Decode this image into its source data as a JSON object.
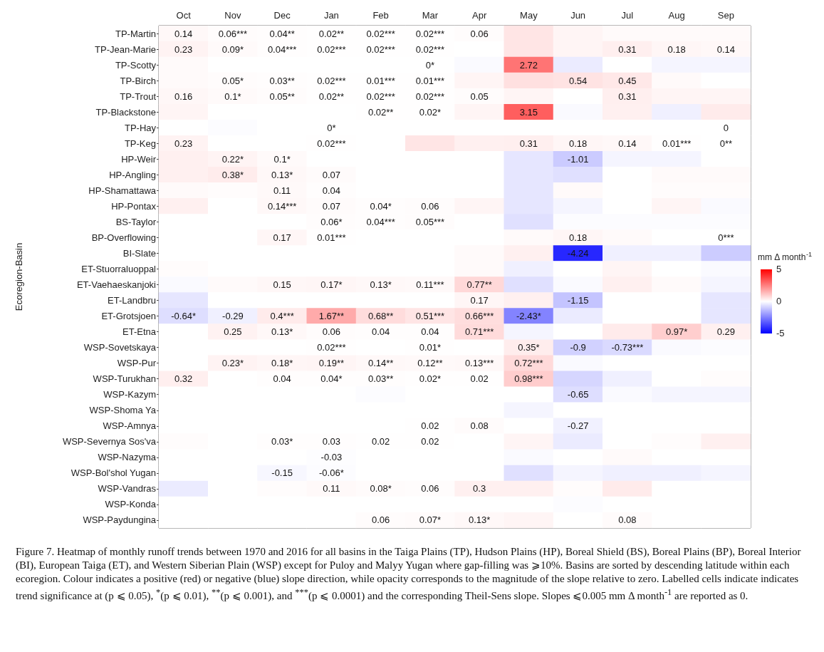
{
  "chart_data": {
    "type": "heatmap",
    "ylabel": "Ecoregion-Basin",
    "clabel": "mm Δ month$^{-1}$",
    "clim": [
      -5,
      5
    ],
    "cticks": [
      -5,
      0,
      5
    ],
    "categories": [
      "Oct",
      "Nov",
      "Dec",
      "Jan",
      "Feb",
      "Mar",
      "Apr",
      "May",
      "Jun",
      "Jul",
      "Aug",
      "Sep"
    ],
    "y_categories": [
      "TP-Martin",
      "TP-Jean-Marie",
      "TP-Scotty",
      "TP-Birch",
      "TP-Trout",
      "TP-Blackstone",
      "TP-Hay",
      "TP-Keg",
      "HP-Weir",
      "HP-Angling",
      "HP-Shamattawa",
      "HP-Pontax",
      "BS-Taylor",
      "BP-Overflowing",
      "BI-Slate",
      "ET-Stuorraluoppal",
      "ET-Vaehaeskanjoki",
      "ET-Landbru",
      "ET-Grotsjoen",
      "ET-Etna",
      "WSP-Sovetskaya",
      "WSP-Pur",
      "WSP-Turukhan",
      "WSP-Kazym",
      "WSP-Shoma Ya",
      "WSP-Amnya",
      "WSP-Severnya Sos'va",
      "WSP-Nazyma",
      "WSP-Bol'shol Yugan",
      "WSP-Vandras",
      "WSP-Konda",
      "WSP-Paydungina"
    ],
    "cells": [
      [
        0.14,
        0.06,
        0.04,
        0.02,
        0.02,
        0.02,
        0.06,
        0.5,
        0.2,
        0.1,
        0.1,
        0.1
      ],
      [
        0.23,
        0.09,
        0.04,
        0.02,
        0.02,
        0.02,
        0,
        0.5,
        0.2,
        0.31,
        0.18,
        0.14
      ],
      [
        0.1,
        0,
        0,
        0,
        0,
        0,
        -0.1,
        2.72,
        -0.4,
        0,
        -0.2,
        -0.2
      ],
      [
        0.1,
        0.05,
        0.03,
        0.02,
        0.01,
        0.01,
        0.2,
        0.6,
        0.54,
        0.45,
        0.1,
        0
      ],
      [
        0.16,
        0.1,
        0.05,
        0.02,
        0.02,
        0.02,
        0.05,
        0.2,
        0,
        0.31,
        0.2,
        0.2
      ],
      [
        0.2,
        0,
        0,
        0,
        0.02,
        0.02,
        0.2,
        3.15,
        -0.1,
        0.3,
        -0.3,
        0.4
      ],
      [
        0,
        -0.05,
        0,
        0,
        0,
        0,
        0,
        0,
        0,
        0,
        0,
        0
      ],
      [
        0.23,
        0,
        0,
        0.02,
        0,
        0.5,
        0.3,
        0.31,
        0.18,
        0.14,
        0.01,
        0
      ],
      [
        0.3,
        0.22,
        0.1,
        0,
        0,
        0,
        0,
        -0.5,
        -1.01,
        -0.2,
        -0.2,
        0
      ],
      [
        0.3,
        0.38,
        0.13,
        0.07,
        0,
        0,
        0,
        -0.5,
        -0.6,
        0,
        0.1,
        0.1
      ],
      [
        0.1,
        0.05,
        0.11,
        0.04,
        0,
        0,
        0,
        -0.5,
        0.1,
        0,
        0.05,
        0.05
      ],
      [
        0.3,
        0,
        0.14,
        0.07,
        0.04,
        0.06,
        0.2,
        -0.5,
        -0.2,
        0,
        0.2,
        -0.1
      ],
      [
        0,
        0,
        0,
        0.06,
        0.04,
        0.05,
        0,
        -0.6,
        -0.05,
        -0.05,
        -0.05,
        -0.05
      ],
      [
        0,
        0,
        0.17,
        0.01,
        0,
        0,
        0,
        0.1,
        0.18,
        0.1,
        0,
        0
      ],
      [
        0,
        0,
        0,
        0,
        0,
        0,
        0.1,
        0.3,
        -4.24,
        -0.3,
        -0.3,
        -1
      ],
      [
        0.05,
        0,
        0,
        0,
        0,
        0,
        0.1,
        -0.3,
        0,
        0.2,
        0,
        -0.1
      ],
      [
        -0.1,
        0.1,
        0.15,
        0.17,
        0.13,
        0.11,
        0.77,
        -0.6,
        -0.1,
        0.3,
        0.1,
        -0.2
      ],
      [
        -0.5,
        0,
        0,
        0,
        0,
        0,
        0.17,
        0.3,
        -1.15,
        0,
        0,
        -0.5
      ],
      [
        -0.64,
        -0.29,
        0.4,
        1.67,
        0.68,
        0.51,
        0.66,
        -2.43,
        -0.4,
        0,
        0,
        -0.5
      ],
      [
        0,
        0.25,
        0.13,
        0.06,
        0.04,
        0.04,
        0.71,
        -0.2,
        0,
        0.4,
        0.97,
        0.29
      ],
      [
        0,
        0,
        0,
        0.02,
        0,
        0.01,
        0,
        0.35,
        -0.9,
        -0.73,
        -0.1,
        -0.05
      ],
      [
        0,
        0.23,
        0.18,
        0.19,
        0.14,
        0.12,
        0.13,
        0.72,
        -0.1,
        0,
        0,
        0
      ],
      [
        0.32,
        0,
        0.04,
        0.04,
        0.03,
        0.02,
        0.02,
        0.98,
        -0.8,
        -0.3,
        0,
        0.05
      ],
      [
        0,
        0,
        0,
        0,
        -0.05,
        0,
        0,
        0,
        -0.65,
        -0.1,
        -0.2,
        -0.2
      ],
      [
        0,
        0,
        0,
        0,
        0,
        0,
        0,
        -0.2,
        0,
        0,
        0,
        0
      ],
      [
        0,
        0,
        0,
        0,
        0,
        0.02,
        0.08,
        0,
        -0.27,
        0,
        0,
        0
      ],
      [
        0.05,
        0,
        0.03,
        0.03,
        0.02,
        0.02,
        0,
        0.2,
        -0.4,
        0,
        0.05,
        0.3
      ],
      [
        0,
        0,
        0,
        -0.03,
        0,
        0,
        0,
        -0.1,
        0,
        0.1,
        0,
        0
      ],
      [
        0,
        0,
        -0.15,
        -0.06,
        0,
        0,
        0,
        -0.6,
        -0.2,
        -0.3,
        -0.3,
        -0.2
      ],
      [
        -0.4,
        0,
        0.05,
        0.11,
        0.08,
        0.06,
        0.3,
        0.3,
        0.05,
        0.4,
        0,
        0
      ],
      [
        0,
        0,
        0,
        0,
        0,
        0,
        0,
        0,
        -0.05,
        0,
        0,
        0
      ],
      [
        0,
        0,
        0,
        0,
        0.06,
        0.07,
        0.13,
        0.2,
        0,
        0.08,
        0,
        0
      ]
    ],
    "cell_labels": [
      [
        "0.14",
        "0.06***",
        "0.04**",
        "0.02**",
        "0.02***",
        "0.02***",
        "0.06",
        null,
        null,
        null,
        null,
        null
      ],
      [
        "0.23",
        "0.09*",
        "0.04***",
        "0.02***",
        "0.02***",
        "0.02***",
        null,
        null,
        null,
        "0.31",
        "0.18",
        "0.14"
      ],
      [
        null,
        null,
        null,
        null,
        null,
        "0*",
        null,
        "2.72",
        null,
        null,
        null,
        null
      ],
      [
        null,
        "0.05*",
        "0.03**",
        "0.02***",
        "0.01***",
        "0.01***",
        null,
        null,
        "0.54",
        "0.45",
        null,
        null
      ],
      [
        "0.16",
        "0.1*",
        "0.05**",
        "0.02**",
        "0.02***",
        "0.02***",
        "0.05",
        null,
        null,
        "0.31",
        null,
        null
      ],
      [
        null,
        null,
        null,
        null,
        "0.02**",
        "0.02*",
        null,
        "3.15",
        null,
        null,
        null,
        null
      ],
      [
        null,
        null,
        null,
        "0*",
        null,
        null,
        null,
        null,
        null,
        null,
        null,
        "0"
      ],
      [
        "0.23",
        null,
        null,
        "0.02***",
        null,
        null,
        null,
        "0.31",
        "0.18",
        "0.14",
        "0.01***",
        "0**"
      ],
      [
        null,
        "0.22*",
        "0.1*",
        null,
        null,
        null,
        null,
        null,
        "-1.01",
        null,
        null,
        null
      ],
      [
        null,
        "0.38*",
        "0.13*",
        "0.07",
        null,
        null,
        null,
        null,
        null,
        null,
        null,
        null
      ],
      [
        null,
        null,
        "0.11",
        "0.04",
        null,
        null,
        null,
        null,
        null,
        null,
        null,
        null
      ],
      [
        null,
        null,
        "0.14***",
        "0.07",
        "0.04*",
        "0.06",
        null,
        null,
        null,
        null,
        null,
        null
      ],
      [
        null,
        null,
        null,
        "0.06*",
        "0.04***",
        "0.05***",
        null,
        null,
        null,
        null,
        null,
        null
      ],
      [
        null,
        null,
        "0.17",
        "0.01***",
        null,
        null,
        null,
        null,
        "0.18",
        null,
        null,
        "0***"
      ],
      [
        null,
        null,
        null,
        null,
        null,
        null,
        null,
        null,
        "-4.24",
        null,
        null,
        null
      ],
      [
        null,
        null,
        null,
        null,
        null,
        null,
        null,
        null,
        null,
        null,
        null,
        null
      ],
      [
        null,
        null,
        "0.15",
        "0.17*",
        "0.13*",
        "0.11***",
        "0.77**",
        null,
        null,
        null,
        null,
        null
      ],
      [
        null,
        null,
        null,
        null,
        null,
        null,
        "0.17",
        null,
        "-1.15",
        null,
        null,
        null
      ],
      [
        "-0.64*",
        "-0.29",
        "0.4***",
        "1.67**",
        "0.68**",
        "0.51***",
        "0.66***",
        "-2.43*",
        null,
        null,
        null,
        null
      ],
      [
        null,
        "0.25",
        "0.13*",
        "0.06",
        "0.04",
        "0.04",
        "0.71***",
        null,
        null,
        null,
        "0.97*",
        "0.29"
      ],
      [
        null,
        null,
        null,
        "0.02***",
        null,
        "0.01*",
        null,
        "0.35*",
        "-0.9",
        "-0.73***",
        null,
        null
      ],
      [
        null,
        "0.23*",
        "0.18*",
        "0.19**",
        "0.14**",
        "0.12**",
        "0.13***",
        "0.72***",
        null,
        null,
        null,
        null
      ],
      [
        "0.32",
        null,
        "0.04",
        "0.04*",
        "0.03**",
        "0.02*",
        "0.02",
        "0.98***",
        null,
        null,
        null,
        null
      ],
      [
        null,
        null,
        null,
        null,
        null,
        null,
        null,
        null,
        "-0.65",
        null,
        null,
        null
      ],
      [
        null,
        null,
        null,
        null,
        null,
        null,
        null,
        null,
        null,
        null,
        null,
        null
      ],
      [
        null,
        null,
        null,
        null,
        null,
        "0.02",
        "0.08",
        null,
        "-0.27",
        null,
        null,
        null
      ],
      [
        null,
        null,
        "0.03*",
        "0.03",
        "0.02",
        "0.02",
        null,
        null,
        null,
        null,
        null,
        null
      ],
      [
        null,
        null,
        null,
        "-0.03",
        null,
        null,
        null,
        null,
        null,
        null,
        null,
        null
      ],
      [
        null,
        null,
        "-0.15",
        "-0.06*",
        null,
        null,
        null,
        null,
        null,
        null,
        null,
        null
      ],
      [
        null,
        null,
        null,
        "0.11",
        "0.08*",
        "0.06",
        "0.3",
        null,
        null,
        null,
        null,
        null
      ],
      [
        null,
        null,
        null,
        null,
        null,
        null,
        null,
        null,
        null,
        null,
        null,
        null
      ],
      [
        null,
        null,
        null,
        null,
        "0.06",
        "0.07*",
        "0.13*",
        null,
        null,
        "0.08",
        null,
        null
      ]
    ],
    "annotations": [
      "Figure 7. Heatmap of monthly runoff trends between 1970 and 2016 for all basins in the Taiga Plains (TP), Hudson Plains (HP), Boreal Shield (BS), Boreal Plains (BP), Boreal Interior (BI), European Taiga (ET), and Western Siberian Plain (WSP) except for Puloy and Malyy Yugan where gap-filling was ⩾10%. Basins are sorted by descending latitude within each ecoregion. Colour indicates a positive (red) or negative (blue) slope direction, while opacity corresponds to the magnitude of the slope relative to zero. Labelled cells indicate indicates trend significance at (p ⩽ 0.05), $^{*}$(p ⩽ 0.01), $^{**}$(p ⩽ 0.001), and $^{***}$(p ⩽ 0.0001) and the corresponding Theil-Sens slope. Slopes ⩽0.005 mm Δ month$^{-1}$ are reported as 0."
    ]
  }
}
